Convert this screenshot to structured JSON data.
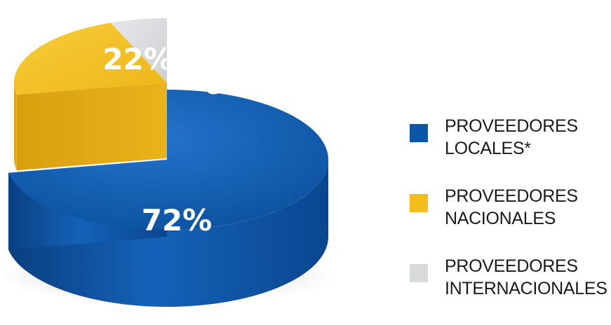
{
  "chart_data": {
    "type": "pie",
    "style": "3d",
    "title": "",
    "labels": [
      "PROVEEDORES LOCALES*",
      "PROVEEDORES NACIONALES",
      "PROVEEDORES INTERNACIONALES"
    ],
    "values": [
      72,
      22,
      6
    ],
    "value_labels": [
      "72%",
      "22%",
      "6%"
    ],
    "colors": [
      "#0b56a6",
      "#f3bd1c",
      "#d9dadc"
    ],
    "legend_position": "right",
    "exploded": [
      "PROVEEDORES NACIONALES",
      "PROVEEDORES INTERNACIONALES"
    ]
  },
  "legend": {
    "items": [
      {
        "line1": "PROVEEDORES",
        "line2": "LOCALES*",
        "color": "#0b56a6"
      },
      {
        "line1": "PROVEEDORES",
        "line2": "NACIONALES",
        "color": "#f3bd1c"
      },
      {
        "line1": "PROVEEDORES",
        "line2": "INTERNACIONALES",
        "color": "#d9dadc"
      }
    ]
  }
}
